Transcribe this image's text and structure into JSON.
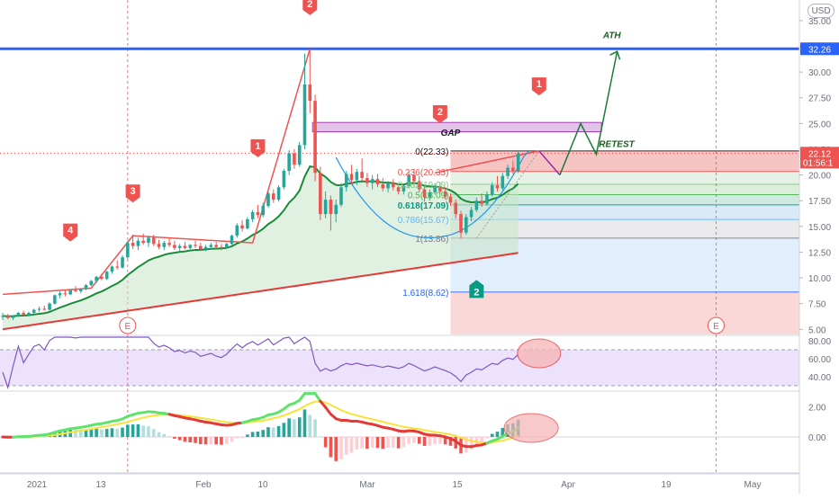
{
  "chart_data": {
    "type": "candlestick",
    "currency": "USD",
    "price_axis": {
      "ticks": [
        "35.00",
        "32.50",
        "30.00",
        "27.50",
        "25.00",
        "22.50",
        "20.00",
        "17.50",
        "15.00",
        "12.50",
        "10.00",
        "7.50",
        "5.00"
      ],
      "ylim": [
        4.5,
        37
      ]
    },
    "rsi_axis": {
      "ticks": [
        "80.00",
        "60.00",
        "40.00"
      ],
      "band": [
        30,
        70
      ],
      "ylim": [
        25,
        85
      ]
    },
    "macd_axis": {
      "ticks": [
        "2.00",
        "0.00"
      ],
      "ylim": [
        -2.4,
        3.0
      ]
    },
    "time_axis": [
      "2021",
      "13",
      "Feb",
      "10",
      "Mar",
      "15",
      "Apr",
      "19",
      "May"
    ],
    "price_labels": [
      {
        "text": "32.26",
        "price": 32.26,
        "color": "#2962ff"
      },
      {
        "text": "22.12",
        "sub": "01:56:1",
        "price": 22.12,
        "color": "#ef5350"
      }
    ],
    "ath_level": 32.26,
    "annotations": {
      "ath": "ATH",
      "gap": "GAP",
      "retest": "RETEST",
      "earnings": [
        "E",
        "E"
      ]
    },
    "wave_labels": [
      {
        "text": "4",
        "t": 13,
        "price": 14.4,
        "color": "#ef5350",
        "dir": "up"
      },
      {
        "text": "3",
        "t": 25,
        "price": 18.2,
        "color": "#ef5350",
        "dir": "up"
      },
      {
        "text": "1",
        "t": 49,
        "price": 22.6,
        "color": "#ef5350",
        "dir": "up"
      },
      {
        "text": "2",
        "t": 59,
        "price": 36.4,
        "color": "#ef5350",
        "dir": "up"
      },
      {
        "text": "2",
        "t": 84,
        "price": 25.9,
        "color": "#ef5350",
        "dir": "up"
      },
      {
        "text": "1",
        "t": 103,
        "price": 28.6,
        "color": "#ef5350",
        "dir": "up"
      },
      {
        "text": "2",
        "t": 91,
        "price": 9.1,
        "color": "#089981",
        "dir": "down"
      }
    ],
    "fib_levels": [
      {
        "label": "0(22.33)",
        "ratio": "0",
        "value": 22.33,
        "color": "#131722"
      },
      {
        "label": "0.236(20.33)",
        "ratio": "0.236",
        "value": 20.33,
        "color": "#ef5350"
      },
      {
        "label": "0.382(19.09)",
        "ratio": "0.382",
        "value": 19.09,
        "color": "#81c784"
      },
      {
        "label": "0.5(18.09)",
        "ratio": "0.5",
        "value": 18.09,
        "color": "#4caf50"
      },
      {
        "label": "0.618(17.09)",
        "ratio": "0.618",
        "value": 17.09,
        "color": "#089981"
      },
      {
        "label": "0.786(15.67)",
        "ratio": "0.786",
        "value": 15.67,
        "color": "#64b5f6"
      },
      {
        "label": "1(13.86)",
        "ratio": "1",
        "value": 13.86,
        "color": "#787b86"
      },
      {
        "label": "1.618(8.62)",
        "ratio": "1.618",
        "value": 8.62,
        "color": "#2962ff"
      }
    ],
    "candles": [
      {
        "o": 6.2,
        "h": 6.6,
        "l": 5.9,
        "c": 6.3
      },
      {
        "o": 6.3,
        "h": 6.5,
        "l": 6.0,
        "c": 6.1
      },
      {
        "o": 6.1,
        "h": 6.4,
        "l": 5.9,
        "c": 6.3
      },
      {
        "o": 6.3,
        "h": 6.7,
        "l": 6.2,
        "c": 6.6
      },
      {
        "o": 6.6,
        "h": 6.8,
        "l": 6.3,
        "c": 6.4
      },
      {
        "o": 6.4,
        "h": 6.7,
        "l": 6.3,
        "c": 6.6
      },
      {
        "o": 6.6,
        "h": 7.0,
        "l": 6.5,
        "c": 6.9
      },
      {
        "o": 6.9,
        "h": 7.2,
        "l": 6.7,
        "c": 7.0
      },
      {
        "o": 7.0,
        "h": 7.3,
        "l": 6.8,
        "c": 6.9
      },
      {
        "o": 6.9,
        "h": 7.6,
        "l": 6.8,
        "c": 7.5
      },
      {
        "o": 7.5,
        "h": 8.4,
        "l": 7.4,
        "c": 8.3
      },
      {
        "o": 8.3,
        "h": 8.7,
        "l": 8.0,
        "c": 8.5
      },
      {
        "o": 8.5,
        "h": 8.8,
        "l": 8.2,
        "c": 8.4
      },
      {
        "o": 8.4,
        "h": 8.9,
        "l": 8.3,
        "c": 8.8
      },
      {
        "o": 8.8,
        "h": 9.2,
        "l": 8.6,
        "c": 8.7
      },
      {
        "o": 8.7,
        "h": 9.0,
        "l": 8.5,
        "c": 8.9
      },
      {
        "o": 8.9,
        "h": 9.4,
        "l": 8.8,
        "c": 9.3
      },
      {
        "o": 9.3,
        "h": 9.8,
        "l": 9.2,
        "c": 9.7
      },
      {
        "o": 9.7,
        "h": 10.2,
        "l": 9.5,
        "c": 10.1
      },
      {
        "o": 10.1,
        "h": 10.4,
        "l": 9.8,
        "c": 9.9
      },
      {
        "o": 9.9,
        "h": 10.7,
        "l": 9.8,
        "c": 10.6
      },
      {
        "o": 10.6,
        "h": 11.2,
        "l": 10.4,
        "c": 11.1
      },
      {
        "o": 11.1,
        "h": 11.7,
        "l": 10.8,
        "c": 11.0
      },
      {
        "o": 11.0,
        "h": 12.2,
        "l": 10.9,
        "c": 12.0
      },
      {
        "o": 12.0,
        "h": 13.6,
        "l": 11.8,
        "c": 13.4
      },
      {
        "o": 13.4,
        "h": 14.2,
        "l": 12.8,
        "c": 13.1
      },
      {
        "o": 13.1,
        "h": 13.9,
        "l": 12.7,
        "c": 13.6
      },
      {
        "o": 13.6,
        "h": 14.3,
        "l": 13.2,
        "c": 13.4
      },
      {
        "o": 13.4,
        "h": 14.1,
        "l": 13.0,
        "c": 13.9
      },
      {
        "o": 13.9,
        "h": 14.2,
        "l": 13.1,
        "c": 13.3
      },
      {
        "o": 13.3,
        "h": 13.7,
        "l": 12.8,
        "c": 13.0
      },
      {
        "o": 13.0,
        "h": 13.6,
        "l": 12.7,
        "c": 13.4
      },
      {
        "o": 13.4,
        "h": 13.9,
        "l": 13.0,
        "c": 13.2
      },
      {
        "o": 13.2,
        "h": 13.6,
        "l": 12.7,
        "c": 12.9
      },
      {
        "o": 12.9,
        "h": 13.3,
        "l": 12.6,
        "c": 13.1
      },
      {
        "o": 13.1,
        "h": 13.5,
        "l": 12.8,
        "c": 12.9
      },
      {
        "o": 12.9,
        "h": 13.3,
        "l": 12.6,
        "c": 13.2
      },
      {
        "o": 13.2,
        "h": 13.6,
        "l": 12.9,
        "c": 13.1
      },
      {
        "o": 13.1,
        "h": 13.4,
        "l": 12.7,
        "c": 12.8
      },
      {
        "o": 12.8,
        "h": 13.2,
        "l": 12.6,
        "c": 13.0
      },
      {
        "o": 13.0,
        "h": 13.4,
        "l": 12.8,
        "c": 13.2
      },
      {
        "o": 13.2,
        "h": 13.5,
        "l": 12.9,
        "c": 13.0
      },
      {
        "o": 13.0,
        "h": 13.3,
        "l": 12.7,
        "c": 12.9
      },
      {
        "o": 12.9,
        "h": 13.4,
        "l": 12.8,
        "c": 13.3
      },
      {
        "o": 13.3,
        "h": 14.2,
        "l": 13.2,
        "c": 14.1
      },
      {
        "o": 14.1,
        "h": 15.3,
        "l": 13.9,
        "c": 15.1
      },
      {
        "o": 15.1,
        "h": 15.6,
        "l": 14.5,
        "c": 14.8
      },
      {
        "o": 14.8,
        "h": 15.9,
        "l": 14.7,
        "c": 15.7
      },
      {
        "o": 15.7,
        "h": 16.6,
        "l": 15.4,
        "c": 16.4
      },
      {
        "o": 16.4,
        "h": 17.1,
        "l": 15.8,
        "c": 16.1
      },
      {
        "o": 16.1,
        "h": 17.3,
        "l": 15.9,
        "c": 17.0
      },
      {
        "o": 17.0,
        "h": 18.4,
        "l": 16.8,
        "c": 18.2
      },
      {
        "o": 18.2,
        "h": 18.6,
        "l": 17.3,
        "c": 17.6
      },
      {
        "o": 17.6,
        "h": 19.0,
        "l": 17.4,
        "c": 18.8
      },
      {
        "o": 18.8,
        "h": 20.6,
        "l": 18.6,
        "c": 20.4
      },
      {
        "o": 20.4,
        "h": 22.4,
        "l": 20.0,
        "c": 22.1
      },
      {
        "o": 22.1,
        "h": 22.5,
        "l": 20.6,
        "c": 21.0
      },
      {
        "o": 21.0,
        "h": 23.2,
        "l": 20.8,
        "c": 22.9
      },
      {
        "o": 22.9,
        "h": 31.8,
        "l": 22.5,
        "c": 28.8
      },
      {
        "o": 28.8,
        "h": 32.26,
        "l": 26.0,
        "c": 27.2
      },
      {
        "o": 27.2,
        "h": 27.8,
        "l": 19.4,
        "c": 20.2
      },
      {
        "o": 20.2,
        "h": 20.8,
        "l": 15.6,
        "c": 16.2
      },
      {
        "o": 16.2,
        "h": 18.4,
        "l": 15.8,
        "c": 17.6
      },
      {
        "o": 17.6,
        "h": 18.0,
        "l": 14.6,
        "c": 16.2
      },
      {
        "o": 16.2,
        "h": 17.6,
        "l": 15.4,
        "c": 17.1
      },
      {
        "o": 17.1,
        "h": 19.2,
        "l": 16.9,
        "c": 18.8
      },
      {
        "o": 18.8,
        "h": 20.4,
        "l": 18.4,
        "c": 20.1
      },
      {
        "o": 20.1,
        "h": 21.0,
        "l": 19.1,
        "c": 19.5
      },
      {
        "o": 19.5,
        "h": 20.6,
        "l": 19.0,
        "c": 20.3
      },
      {
        "o": 20.3,
        "h": 21.6,
        "l": 19.4,
        "c": 19.7
      },
      {
        "o": 19.7,
        "h": 20.2,
        "l": 18.8,
        "c": 19.2
      },
      {
        "o": 19.2,
        "h": 20.0,
        "l": 18.6,
        "c": 19.6
      },
      {
        "o": 19.6,
        "h": 20.1,
        "l": 18.8,
        "c": 19.1
      },
      {
        "o": 19.1,
        "h": 19.7,
        "l": 18.4,
        "c": 18.7
      },
      {
        "o": 18.7,
        "h": 19.4,
        "l": 18.3,
        "c": 19.2
      },
      {
        "o": 19.2,
        "h": 19.6,
        "l": 18.5,
        "c": 18.8
      },
      {
        "o": 18.8,
        "h": 19.2,
        "l": 18.1,
        "c": 18.4
      },
      {
        "o": 18.4,
        "h": 19.0,
        "l": 18.1,
        "c": 18.9
      },
      {
        "o": 18.9,
        "h": 20.3,
        "l": 18.7,
        "c": 20.0
      },
      {
        "o": 20.0,
        "h": 20.6,
        "l": 19.2,
        "c": 19.4
      },
      {
        "o": 19.4,
        "h": 19.9,
        "l": 18.3,
        "c": 18.6
      },
      {
        "o": 18.6,
        "h": 19.0,
        "l": 17.4,
        "c": 17.8
      },
      {
        "o": 17.8,
        "h": 18.6,
        "l": 17.5,
        "c": 18.3
      },
      {
        "o": 18.3,
        "h": 19.2,
        "l": 18.1,
        "c": 18.9
      },
      {
        "o": 18.9,
        "h": 19.3,
        "l": 18.2,
        "c": 18.4
      },
      {
        "o": 18.4,
        "h": 18.8,
        "l": 17.6,
        "c": 17.9
      },
      {
        "o": 17.9,
        "h": 18.2,
        "l": 17.0,
        "c": 17.3
      },
      {
        "o": 17.3,
        "h": 17.6,
        "l": 15.8,
        "c": 16.2
      },
      {
        "o": 16.2,
        "h": 16.5,
        "l": 13.86,
        "c": 14.4
      },
      {
        "o": 14.4,
        "h": 16.2,
        "l": 14.2,
        "c": 15.9
      },
      {
        "o": 15.9,
        "h": 16.9,
        "l": 15.5,
        "c": 16.6
      },
      {
        "o": 16.6,
        "h": 17.8,
        "l": 16.4,
        "c": 17.5
      },
      {
        "o": 17.5,
        "h": 18.2,
        "l": 16.9,
        "c": 17.2
      },
      {
        "o": 17.2,
        "h": 18.4,
        "l": 17.0,
        "c": 18.1
      },
      {
        "o": 18.1,
        "h": 19.3,
        "l": 17.9,
        "c": 19.0
      },
      {
        "o": 19.0,
        "h": 19.9,
        "l": 18.4,
        "c": 18.7
      },
      {
        "o": 18.7,
        "h": 20.2,
        "l": 18.5,
        "c": 19.9
      },
      {
        "o": 19.9,
        "h": 21.0,
        "l": 19.6,
        "c": 20.7
      },
      {
        "o": 20.7,
        "h": 21.4,
        "l": 20.1,
        "c": 20.4
      },
      {
        "o": 20.4,
        "h": 22.33,
        "l": 20.2,
        "c": 22.1
      }
    ]
  }
}
